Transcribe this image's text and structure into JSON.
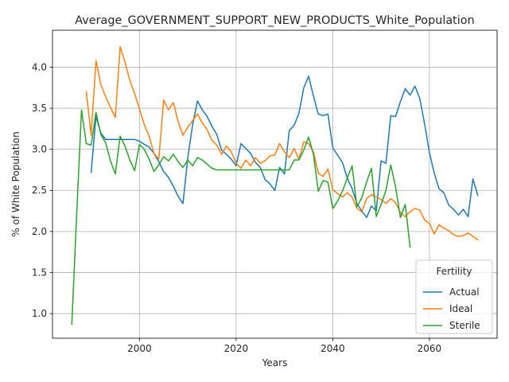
{
  "chart_data": {
    "type": "line",
    "title": "Average_GOVERNMENT_SUPPORT_NEW_PRODUCTS_White_Population",
    "xlabel": "Years",
    "ylabel": "% of White Population",
    "xlim": [
      1982,
      2074
    ],
    "ylim": [
      0.7,
      4.45
    ],
    "xticks": [
      2000,
      2020,
      2040,
      2060
    ],
    "yticks": [
      1.0,
      1.5,
      2.0,
      2.5,
      3.0,
      3.5,
      4.0
    ],
    "ytick_labels": [
      "1.0",
      "1.5",
      "2.0",
      "2.5",
      "3.0",
      "3.5",
      "4.0"
    ],
    "grid": true,
    "legend": {
      "title": "Fertility",
      "position": "lower-right"
    },
    "series": [
      {
        "name": "Actual",
        "color": "#1f77b4",
        "x": [
          1990,
          1991,
          1992,
          1993,
          1994,
          1995,
          1996,
          1997,
          1998,
          1999,
          2000,
          2001,
          2002,
          2003,
          2004,
          2005,
          2006,
          2007,
          2008,
          2009,
          2010,
          2011,
          2012,
          2013,
          2014,
          2015,
          2016,
          2017,
          2018,
          2019,
          2020,
          2021,
          2022,
          2023,
          2024,
          2025,
          2026,
          2027,
          2028,
          2029,
          2030,
          2031,
          2032,
          2033,
          2034,
          2035,
          2036,
          2037,
          2038,
          2039,
          2040,
          2041,
          2042,
          2043,
          2044,
          2045,
          2046,
          2047,
          2048,
          2049,
          2050,
          2051,
          2052,
          2053,
          2054,
          2055,
          2056,
          2057,
          2058,
          2059,
          2060,
          2061,
          2062,
          2063,
          2064,
          2065,
          2066,
          2067,
          2068,
          2069,
          2070
        ],
        "values": [
          2.72,
          3.4,
          3.2,
          3.12,
          3.12,
          3.12,
          3.12,
          3.12,
          3.12,
          3.12,
          3.1,
          3.06,
          3.03,
          2.95,
          2.85,
          2.73,
          2.66,
          2.55,
          2.43,
          2.34,
          2.9,
          3.3,
          3.59,
          3.48,
          3.4,
          3.28,
          3.18,
          2.99,
          2.94,
          2.88,
          2.8,
          3.07,
          3.01,
          2.95,
          2.84,
          2.78,
          2.63,
          2.58,
          2.5,
          2.78,
          2.7,
          3.23,
          3.29,
          3.44,
          3.75,
          3.89,
          3.65,
          3.43,
          3.41,
          3.43,
          3.02,
          2.93,
          2.84,
          2.65,
          2.52,
          2.34,
          2.25,
          2.17,
          2.31,
          2.25,
          2.86,
          2.83,
          3.41,
          3.4,
          3.58,
          3.74,
          3.66,
          3.77,
          3.62,
          3.31,
          2.96,
          2.71,
          2.52,
          2.47,
          2.32,
          2.27,
          2.2,
          2.27,
          2.18,
          2.64,
          2.44
        ]
      },
      {
        "name": "Ideal",
        "color": "#ff7f0e",
        "x": [
          1989,
          1990,
          1991,
          1992,
          1993,
          1994,
          1995,
          1996,
          1997,
          1998,
          1999,
          2000,
          2001,
          2002,
          2003,
          2004,
          2005,
          2006,
          2007,
          2008,
          2009,
          2010,
          2011,
          2012,
          2013,
          2014,
          2015,
          2016,
          2017,
          2018,
          2019,
          2020,
          2021,
          2022,
          2023,
          2024,
          2025,
          2026,
          2027,
          2028,
          2029,
          2030,
          2031,
          2032,
          2033,
          2034,
          2035,
          2036,
          2037,
          2038,
          2039,
          2040,
          2041,
          2042,
          2043,
          2044,
          2045,
          2046,
          2047,
          2048,
          2049,
          2050,
          2051,
          2052,
          2053,
          2054,
          2055,
          2056,
          2057,
          2058,
          2059,
          2060,
          2061,
          2062,
          2063,
          2064,
          2065,
          2066,
          2067,
          2068,
          2069,
          2070
        ],
        "values": [
          3.7,
          3.17,
          4.08,
          3.79,
          3.64,
          3.51,
          3.39,
          4.25,
          4.06,
          3.84,
          3.68,
          3.49,
          3.3,
          3.16,
          2.95,
          2.88,
          3.6,
          3.48,
          3.57,
          3.34,
          3.17,
          3.27,
          3.35,
          3.43,
          3.32,
          3.24,
          3.11,
          3.05,
          2.94,
          3.04,
          2.97,
          2.83,
          2.77,
          2.87,
          2.8,
          2.9,
          2.83,
          2.86,
          2.92,
          2.93,
          3.07,
          2.97,
          2.9,
          3.01,
          2.88,
          3.09,
          3.07,
          2.97,
          2.71,
          2.67,
          2.76,
          2.51,
          2.46,
          2.42,
          2.47,
          2.42,
          2.28,
          2.24,
          2.4,
          2.45,
          2.42,
          2.39,
          2.34,
          2.4,
          2.35,
          2.23,
          2.18,
          2.24,
          2.28,
          2.26,
          2.14,
          2.1,
          1.97,
          2.08,
          2.04,
          2.01,
          1.96,
          1.94,
          1.95,
          1.98,
          1.94,
          1.9
        ]
      },
      {
        "name": "Sterile",
        "color": "#2ca02c",
        "x": [
          1986,
          1987,
          1988,
          1989,
          1990,
          1991,
          1992,
          1993,
          1994,
          1995,
          1996,
          1997,
          1998,
          1999,
          2000,
          2001,
          2002,
          2003,
          2004,
          2005,
          2006,
          2007,
          2008,
          2009,
          2010,
          2011,
          2012,
          2013,
          2014,
          2015,
          2016,
          2017,
          2018,
          2019,
          2020,
          2021,
          2022,
          2023,
          2024,
          2025,
          2026,
          2027,
          2028,
          2029,
          2030,
          2031,
          2032,
          2033,
          2034,
          2035,
          2036,
          2037,
          2038,
          2039,
          2040,
          2041,
          2042,
          2043,
          2044,
          2045,
          2046,
          2047,
          2048,
          2049,
          2050,
          2051,
          2052,
          2053,
          2054,
          2055,
          2056
        ],
        "values": [
          0.87,
          2.2,
          3.48,
          3.07,
          3.05,
          3.45,
          3.18,
          3.08,
          2.86,
          2.7,
          3.16,
          3.04,
          2.87,
          2.74,
          3.06,
          3.0,
          2.88,
          2.73,
          2.81,
          2.91,
          2.86,
          2.94,
          2.85,
          2.78,
          2.87,
          2.8,
          2.9,
          2.87,
          2.82,
          2.77,
          2.75,
          2.75,
          2.75,
          2.75,
          2.75,
          2.75,
          2.75,
          2.75,
          2.75,
          2.75,
          2.75,
          2.75,
          2.75,
          2.75,
          2.75,
          2.75,
          2.87,
          2.87,
          2.99,
          3.15,
          2.94,
          2.49,
          2.62,
          2.6,
          2.28,
          2.37,
          2.49,
          2.65,
          2.8,
          2.3,
          2.41,
          2.6,
          2.77,
          2.18,
          2.33,
          2.5,
          2.81,
          2.54,
          2.17,
          2.33,
          1.81
        ]
      }
    ]
  }
}
